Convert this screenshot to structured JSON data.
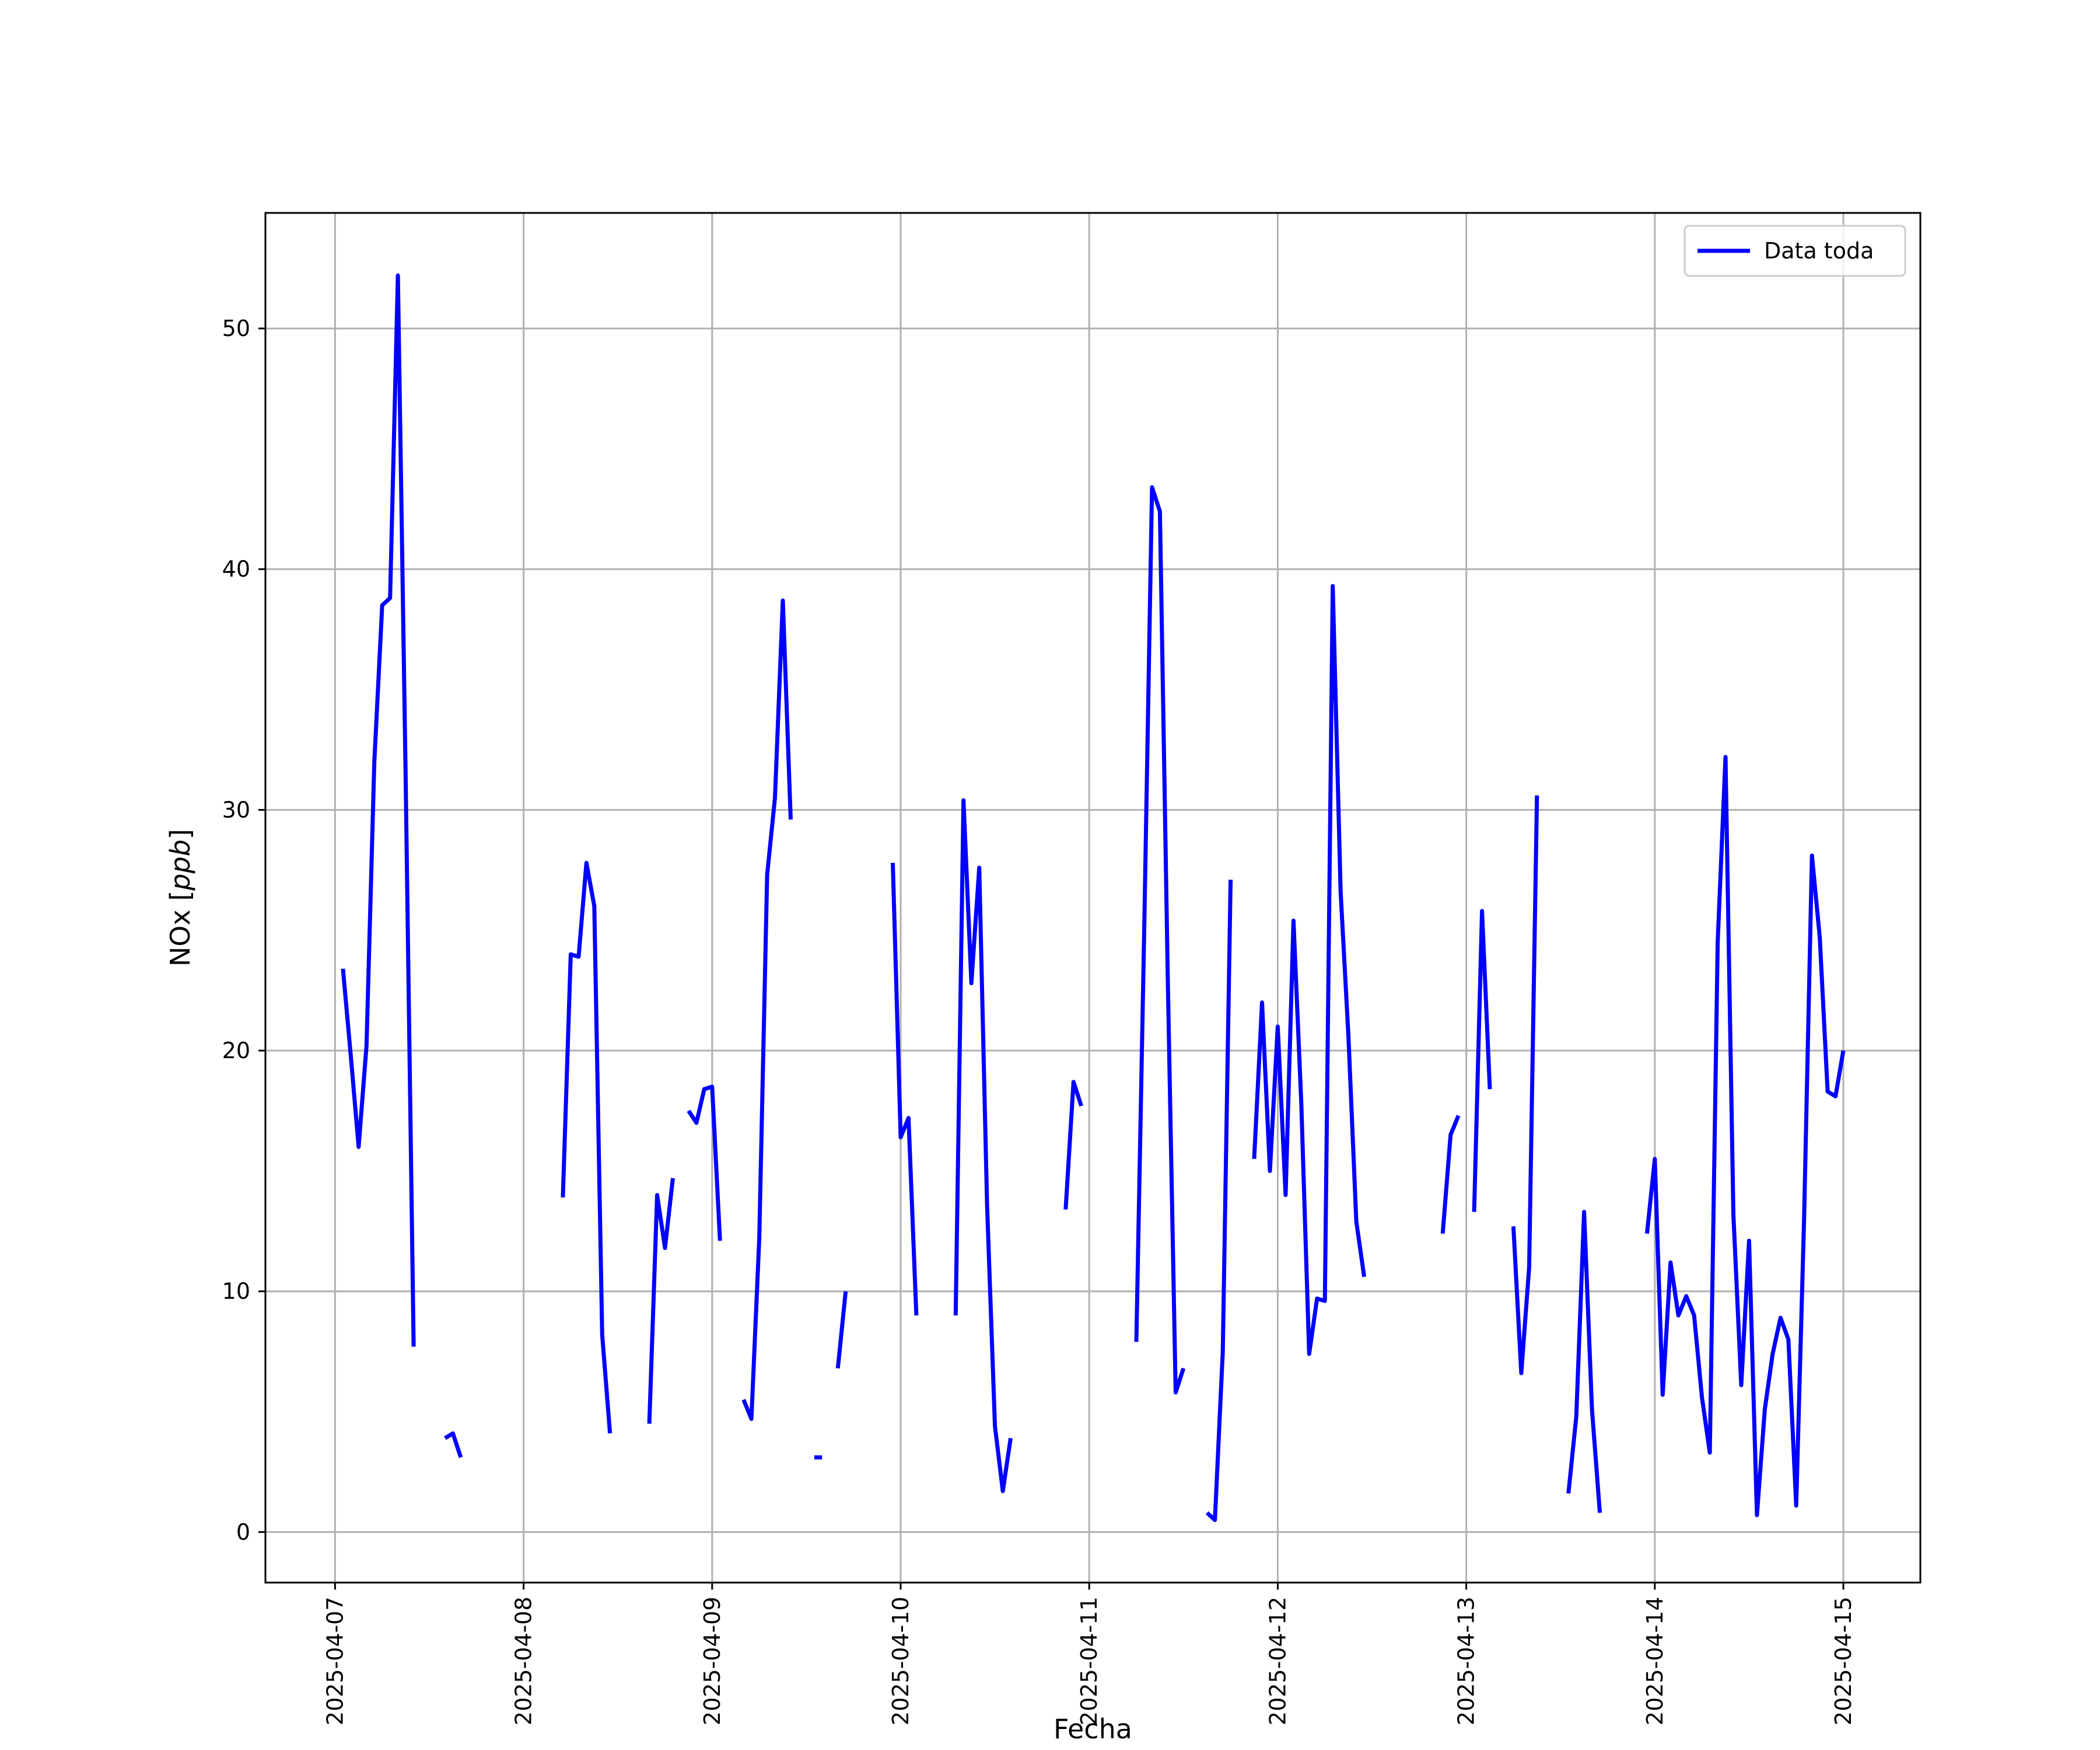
{
  "chart_data": {
    "type": "line",
    "xlabel": "Fecha",
    "ylabel": "NOx [ppb]",
    "ylabel_main": "NOx [",
    "ylabel_unit": "ppb",
    "ylabel_close": "]",
    "x_tick_labels": [
      "2025-04-07",
      "2025-04-08",
      "2025-04-09",
      "2025-04-10",
      "2025-04-11",
      "2025-04-12",
      "2025-04-13",
      "2025-04-14",
      "2025-04-15"
    ],
    "y_ticks": [
      0,
      10,
      20,
      30,
      40,
      50
    ],
    "xlim": [
      "2025-04-06T15:08",
      "2025-04-15T09:48"
    ],
    "ylim": [
      -2.1,
      54.8
    ],
    "grid": true,
    "legend_position": "top-right",
    "colors": {
      "series": "#0000ff",
      "grid": "#b0b0b0",
      "axis": "#000000"
    },
    "series": [
      {
        "name": "Data toda",
        "segments": [
          [
            [
              "2025-04-07T01:00",
              23.4
            ],
            [
              "2025-04-07T02:00",
              19.8
            ],
            [
              "2025-04-07T03:00",
              16.0
            ],
            [
              "2025-04-07T04:00",
              20.2
            ],
            [
              "2025-04-07T05:00",
              32.0
            ],
            [
              "2025-04-07T06:00",
              38.5
            ],
            [
              "2025-04-07T07:00",
              38.8
            ],
            [
              "2025-04-07T08:00",
              52.2
            ],
            [
              "2025-04-07T09:00",
              31.0
            ],
            [
              "2025-04-07T10:00",
              7.7
            ]
          ],
          [
            [
              "2025-04-07T14:00",
              3.9
            ],
            [
              "2025-04-07T15:00",
              4.1
            ],
            [
              "2025-04-07T16:00",
              3.1
            ]
          ],
          [
            [
              "2025-04-08T05:00",
              13.9
            ],
            [
              "2025-04-08T06:00",
              24.0
            ],
            [
              "2025-04-08T07:00",
              23.9
            ],
            [
              "2025-04-08T08:00",
              27.8
            ],
            [
              "2025-04-08T09:00",
              26.0
            ],
            [
              "2025-04-08T10:00",
              8.2
            ],
            [
              "2025-04-08T11:00",
              4.1
            ]
          ],
          [
            [
              "2025-04-08T16:00",
              4.5
            ],
            [
              "2025-04-08T17:00",
              14.0
            ],
            [
              "2025-04-08T18:00",
              11.8
            ],
            [
              "2025-04-08T19:00",
              14.7
            ]
          ],
          [
            [
              "2025-04-08T21:00",
              17.5
            ],
            [
              "2025-04-08T22:00",
              17.0
            ],
            [
              "2025-04-08T23:00",
              18.4
            ],
            [
              "2025-04-09T00:00",
              18.5
            ],
            [
              "2025-04-09T01:00",
              12.1
            ]
          ],
          [
            [
              "2025-04-09T04:00",
              5.5
            ],
            [
              "2025-04-09T05:00",
              4.7
            ],
            [
              "2025-04-09T06:00",
              12.2
            ],
            [
              "2025-04-09T07:00",
              27.3
            ],
            [
              "2025-04-09T08:00",
              30.5
            ],
            [
              "2025-04-09T09:00",
              38.7
            ],
            [
              "2025-04-09T10:00",
              29.6
            ]
          ],
          [
            [
              "2025-04-09T13:00",
              3.1
            ],
            [
              "2025-04-09T14:00",
              3.1
            ]
          ],
          [
            [
              "2025-04-09T16:00",
              6.8
            ],
            [
              "2025-04-09T17:00",
              10.0
            ]
          ],
          [
            [
              "2025-04-09T23:00",
              27.8
            ],
            [
              "2025-04-10T00:00",
              16.4
            ],
            [
              "2025-04-10T01:00",
              17.2
            ],
            [
              "2025-04-10T02:00",
              9.0
            ]
          ],
          [
            [
              "2025-04-10T07:00",
              9.0
            ],
            [
              "2025-04-10T08:00",
              30.4
            ],
            [
              "2025-04-10T09:00",
              22.8
            ],
            [
              "2025-04-10T10:00",
              27.6
            ],
            [
              "2025-04-10T11:00",
              13.6
            ],
            [
              "2025-04-10T12:00",
              4.4
            ],
            [
              "2025-04-10T13:00",
              1.7
            ],
            [
              "2025-04-10T14:00",
              3.9
            ]
          ],
          [
            [
              "2025-04-10T21:00",
              13.4
            ],
            [
              "2025-04-10T22:00",
              18.7
            ],
            [
              "2025-04-10T23:00",
              17.7
            ]
          ],
          [
            [
              "2025-04-11T06:00",
              7.9
            ],
            [
              "2025-04-11T07:00",
              25.0
            ],
            [
              "2025-04-11T08:00",
              43.4
            ],
            [
              "2025-04-11T09:00",
              42.4
            ],
            [
              "2025-04-11T10:00",
              23.0
            ],
            [
              "2025-04-11T11:00",
              5.8
            ],
            [
              "2025-04-11T12:00",
              6.8
            ]
          ],
          [
            [
              "2025-04-11T15:00",
              0.8
            ],
            [
              "2025-04-11T16:00",
              0.5
            ],
            [
              "2025-04-11T17:00",
              7.5
            ],
            [
              "2025-04-11T18:00",
              27.1
            ]
          ],
          [
            [
              "2025-04-11T21:00",
              15.5
            ],
            [
              "2025-04-11T22:00",
              22.0
            ],
            [
              "2025-04-11T23:00",
              15.0
            ],
            [
              "2025-04-12T00:00",
              21.0
            ],
            [
              "2025-04-12T01:00",
              14.0
            ],
            [
              "2025-04-12T02:00",
              25.4
            ],
            [
              "2025-04-12T03:00",
              17.8
            ],
            [
              "2025-04-12T04:00",
              7.4
            ],
            [
              "2025-04-12T05:00",
              9.7
            ],
            [
              "2025-04-12T06:00",
              9.6
            ],
            [
              "2025-04-12T07:00",
              39.3
            ],
            [
              "2025-04-12T08:00",
              26.6
            ],
            [
              "2025-04-12T09:00",
              20.6
            ],
            [
              "2025-04-12T10:00",
              12.9
            ],
            [
              "2025-04-12T11:00",
              10.6
            ]
          ],
          [
            [
              "2025-04-12T21:00",
              12.4
            ],
            [
              "2025-04-12T22:00",
              16.5
            ],
            [
              "2025-04-12T23:00",
              17.3
            ]
          ],
          [
            [
              "2025-04-13T01:00",
              13.3
            ],
            [
              "2025-04-13T02:00",
              25.8
            ],
            [
              "2025-04-13T03:00",
              18.4
            ]
          ],
          [
            [
              "2025-04-13T06:00",
              12.7
            ],
            [
              "2025-04-13T07:00",
              6.6
            ],
            [
              "2025-04-13T08:00",
              11.0
            ],
            [
              "2025-04-13T09:00",
              30.6
            ]
          ],
          [
            [
              "2025-04-13T13:00",
              1.6
            ],
            [
              "2025-04-13T14:00",
              4.8
            ],
            [
              "2025-04-13T15:00",
              13.3
            ],
            [
              "2025-04-13T16:00",
              5.1
            ],
            [
              "2025-04-13T17:00",
              0.8
            ]
          ],
          [
            [
              "2025-04-13T23:00",
              12.4
            ],
            [
              "2025-04-14T00:00",
              15.5
            ],
            [
              "2025-04-14T01:00",
              5.7
            ],
            [
              "2025-04-14T02:00",
              11.2
            ],
            [
              "2025-04-14T03:00",
              9.0
            ],
            [
              "2025-04-14T04:00",
              9.8
            ],
            [
              "2025-04-14T05:00",
              9.0
            ],
            [
              "2025-04-14T06:00",
              5.6
            ],
            [
              "2025-04-14T07:00",
              3.3
            ],
            [
              "2025-04-14T08:00",
              24.5
            ],
            [
              "2025-04-14T09:00",
              32.2
            ],
            [
              "2025-04-14T10:00",
              13.2
            ],
            [
              "2025-04-14T11:00",
              6.1
            ],
            [
              "2025-04-14T12:00",
              12.1
            ],
            [
              "2025-04-14T13:00",
              0.7
            ],
            [
              "2025-04-14T14:00",
              5.1
            ],
            [
              "2025-04-14T15:00",
              7.4
            ],
            [
              "2025-04-14T16:00",
              8.9
            ],
            [
              "2025-04-14T17:00",
              8.0
            ],
            [
              "2025-04-14T18:00",
              1.1
            ],
            [
              "2025-04-14T19:00",
              13.0
            ],
            [
              "2025-04-14T20:00",
              28.1
            ],
            [
              "2025-04-14T21:00",
              24.7
            ],
            [
              "2025-04-14T22:00",
              18.3
            ],
            [
              "2025-04-14T23:00",
              18.1
            ],
            [
              "2025-04-15T00:00",
              20.0
            ]
          ]
        ]
      }
    ]
  }
}
